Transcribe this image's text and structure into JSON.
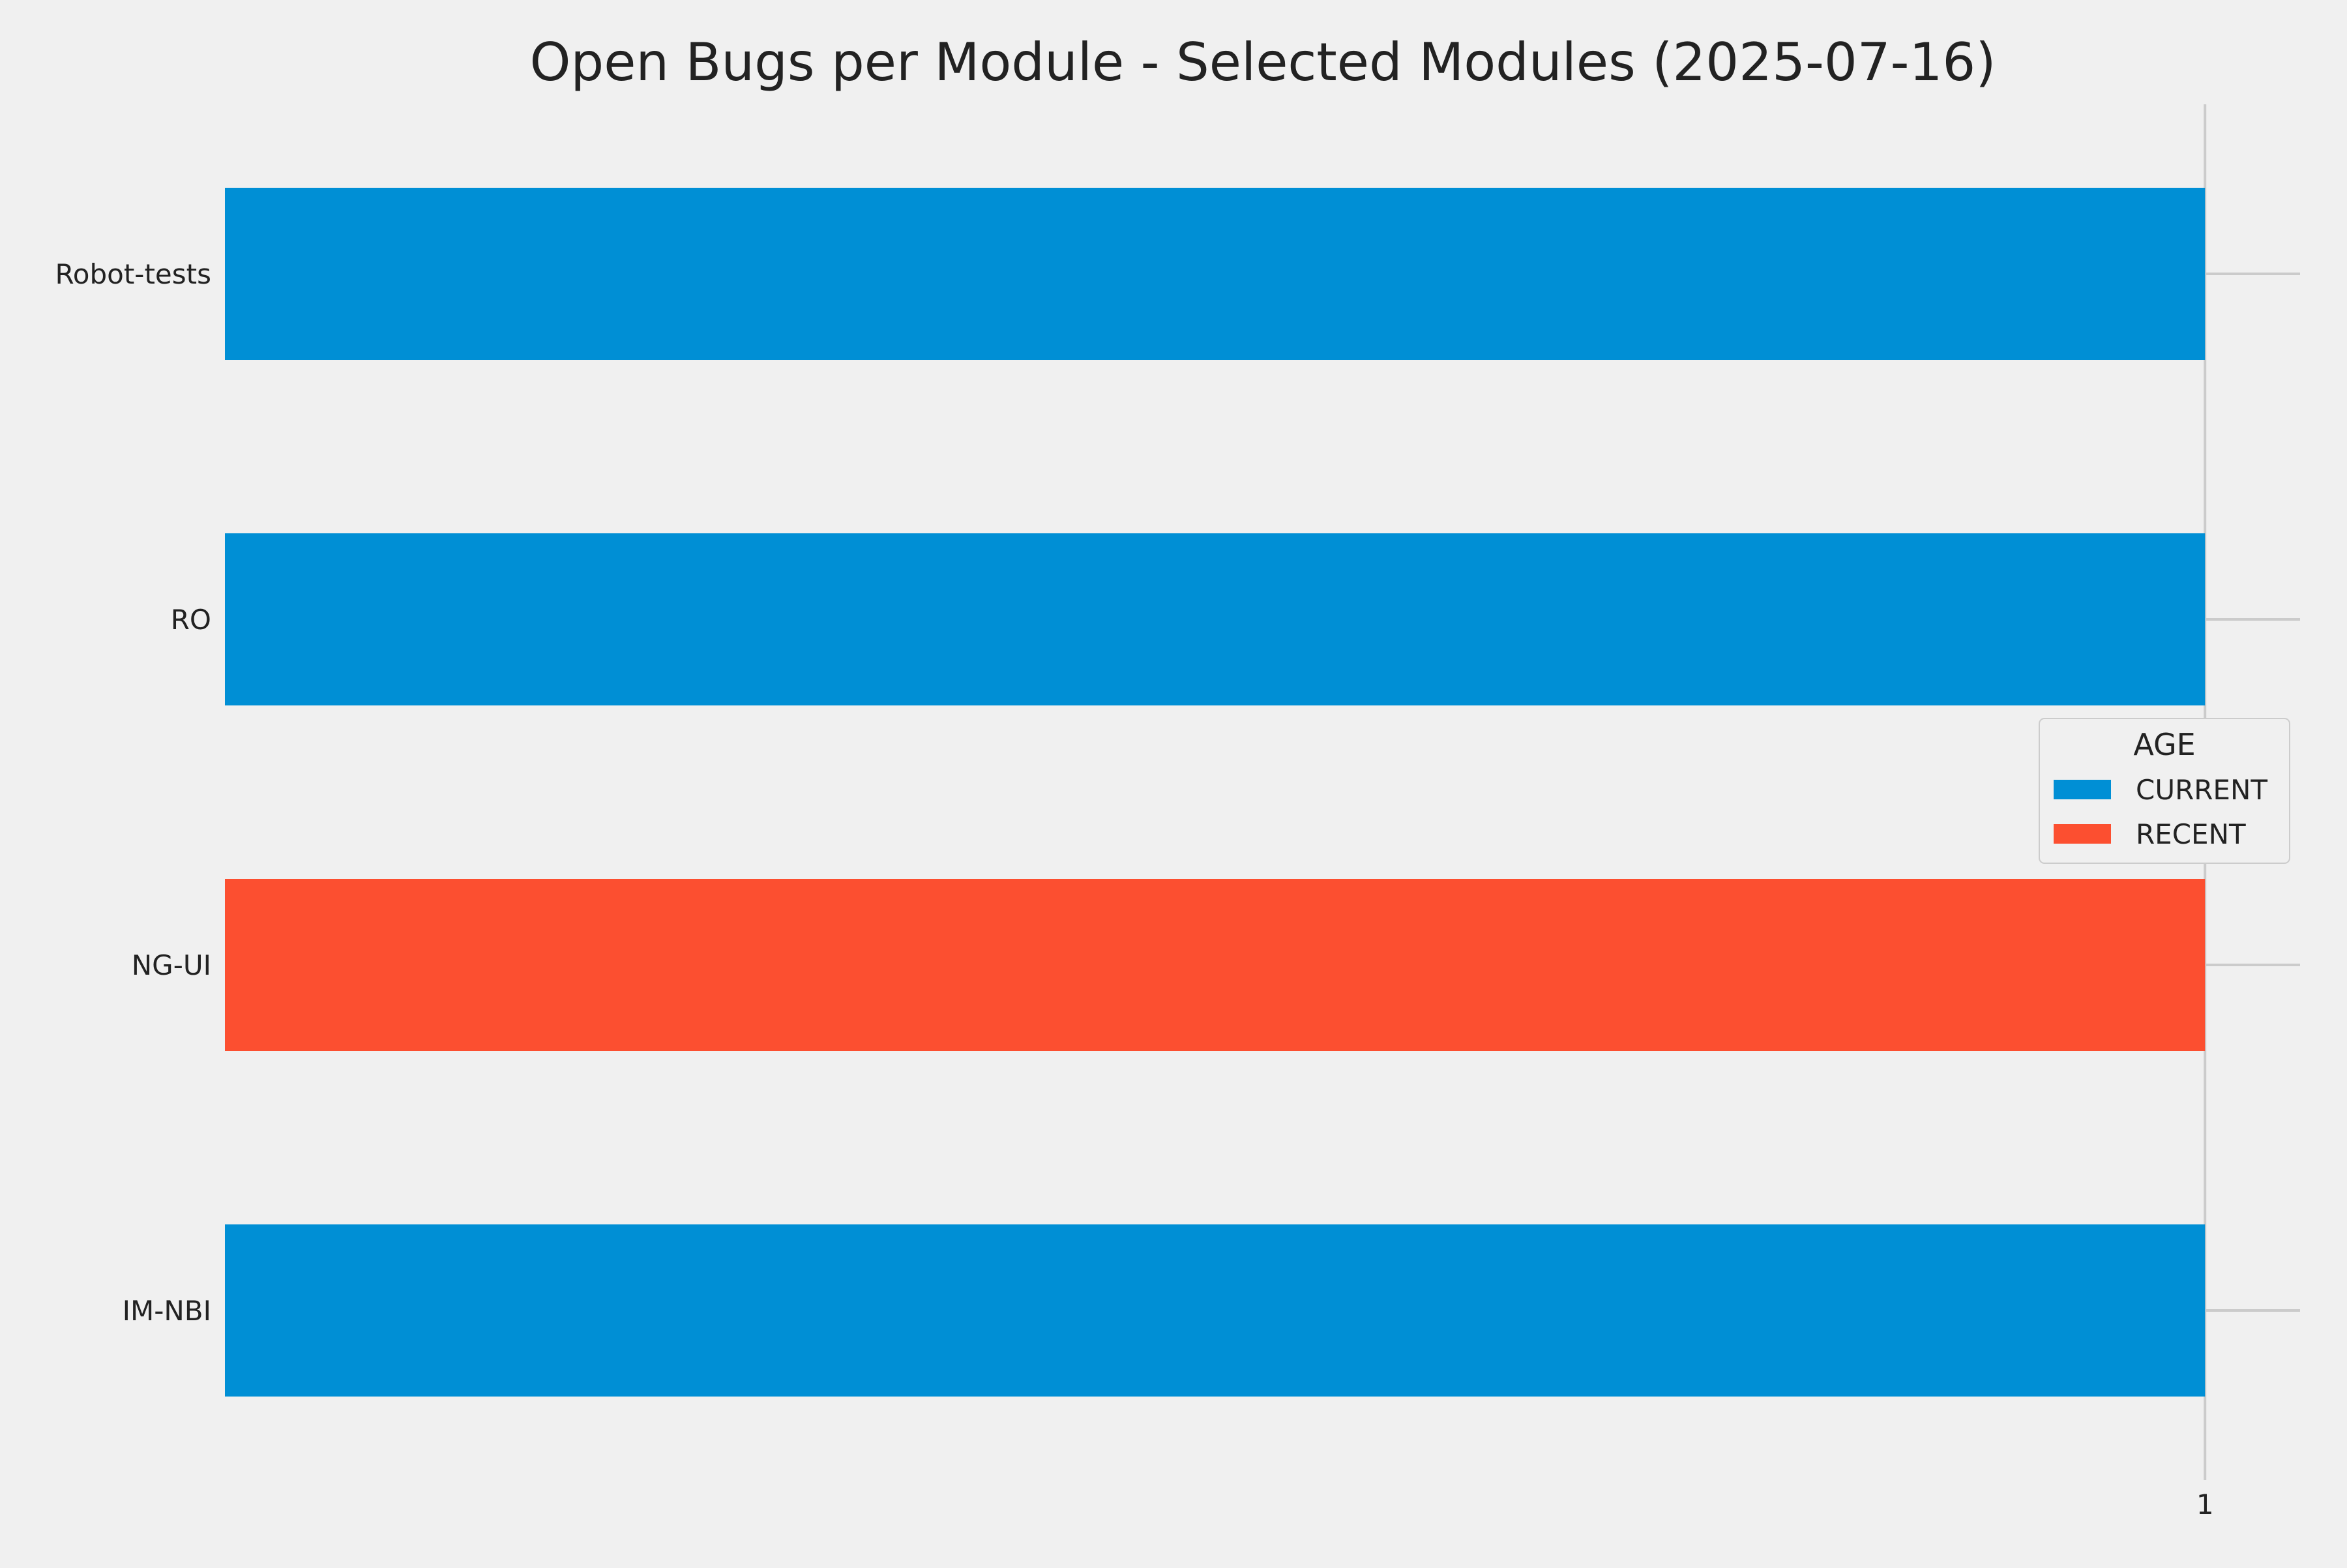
{
  "chart_data": {
    "type": "bar",
    "orientation": "horizontal",
    "title": "Open Bugs per Module - Selected Modules (2025-07-16)",
    "xlabel": "",
    "ylabel": "",
    "categories": [
      "Robot-tests",
      "RO",
      "NG-UI",
      "IM-NBI"
    ],
    "values": [
      1,
      1,
      1,
      1
    ],
    "bar_age": [
      "CURRENT",
      "CURRENT",
      "RECENT",
      "CURRENT"
    ],
    "x_ticks": [
      "1"
    ],
    "xlim": [
      0,
      1.048
    ],
    "grid": true,
    "legend": {
      "title": "AGE",
      "placement": "center-right",
      "entries": [
        {
          "label": "CURRENT",
          "color": "#008fd5"
        },
        {
          "label": "RECENT",
          "color": "#fc4f30"
        }
      ]
    }
  },
  "colors": {
    "background": "#f0f0f0",
    "grid": "#cbcbcb",
    "text": "#222222"
  }
}
